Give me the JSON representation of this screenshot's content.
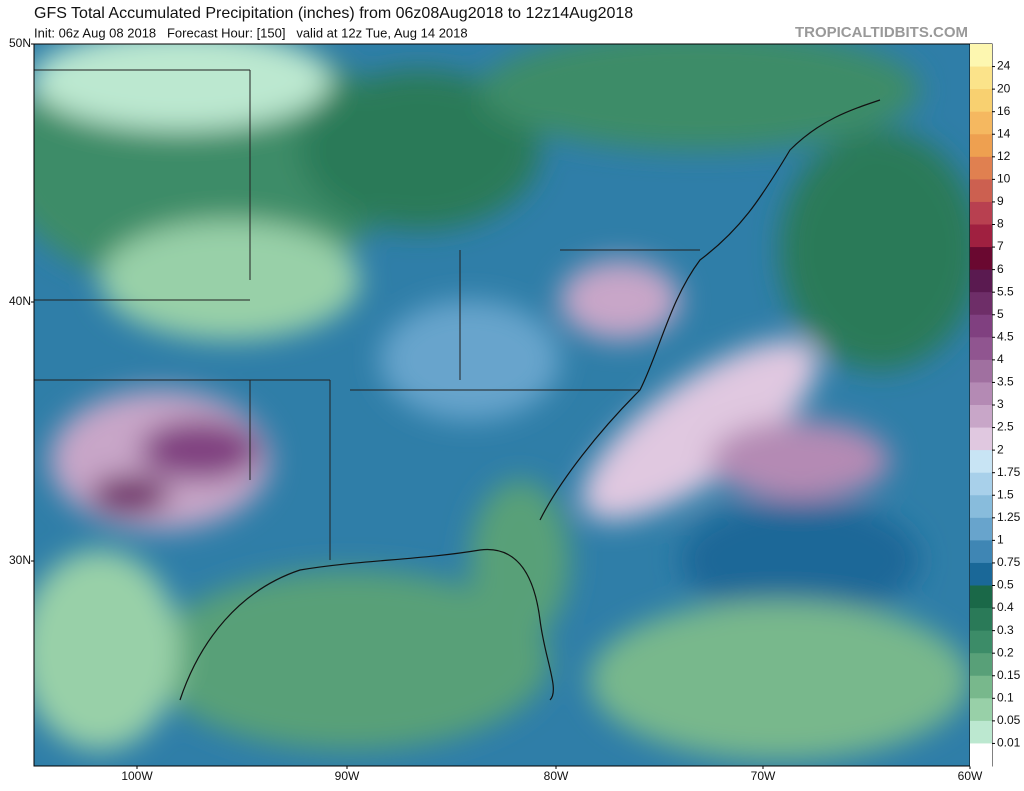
{
  "header": {
    "title": "GFS Total Accumulated Precipitation (inches) from 06z08Aug2018 to 12z14Aug2018",
    "subtitle": "Init: 06z Aug 08 2018   Forecast Hour: [150]   valid at 12z Tue, Aug 14 2018",
    "credit": "TROPICALTIDBITS.COM"
  },
  "map": {
    "lat_labels": [
      "50N",
      "40N",
      "30N"
    ],
    "lon_labels": [
      "100W",
      "90W",
      "80W",
      "70W",
      "60W"
    ]
  },
  "colorbar": {
    "labels": [
      "24",
      "20",
      "16",
      "14",
      "12",
      "10",
      "9",
      "8",
      "7",
      "6",
      "5.5",
      "5",
      "4.5",
      "4",
      "3.5",
      "3",
      "2.5",
      "2",
      "1.75",
      "1.5",
      "1.25",
      "1",
      "0.75",
      "0.5",
      "0.4",
      "0.3",
      "0.2",
      "0.15",
      "0.1",
      "0.05",
      "0.01"
    ],
    "colors": [
      "#fdf7b0",
      "#fbe38a",
      "#f8d070",
      "#f5b860",
      "#eea050",
      "#e08050",
      "#cc6050",
      "#b84050",
      "#a02040",
      "#6a0830",
      "#5a1a50",
      "#6e2e68",
      "#804080",
      "#905590",
      "#a070a0",
      "#b48ab4",
      "#c8a6c8",
      "#e0c8e0",
      "#c8e4f4",
      "#a8d0ea",
      "#88bcdc",
      "#68a4cc",
      "#3f86b4",
      "#1a6898",
      "#1a6848",
      "#2a7a58",
      "#3c8c68",
      "#58a078",
      "#78b88c",
      "#98d0a8",
      "#bce8d0",
      "#ffffff"
    ]
  }
}
